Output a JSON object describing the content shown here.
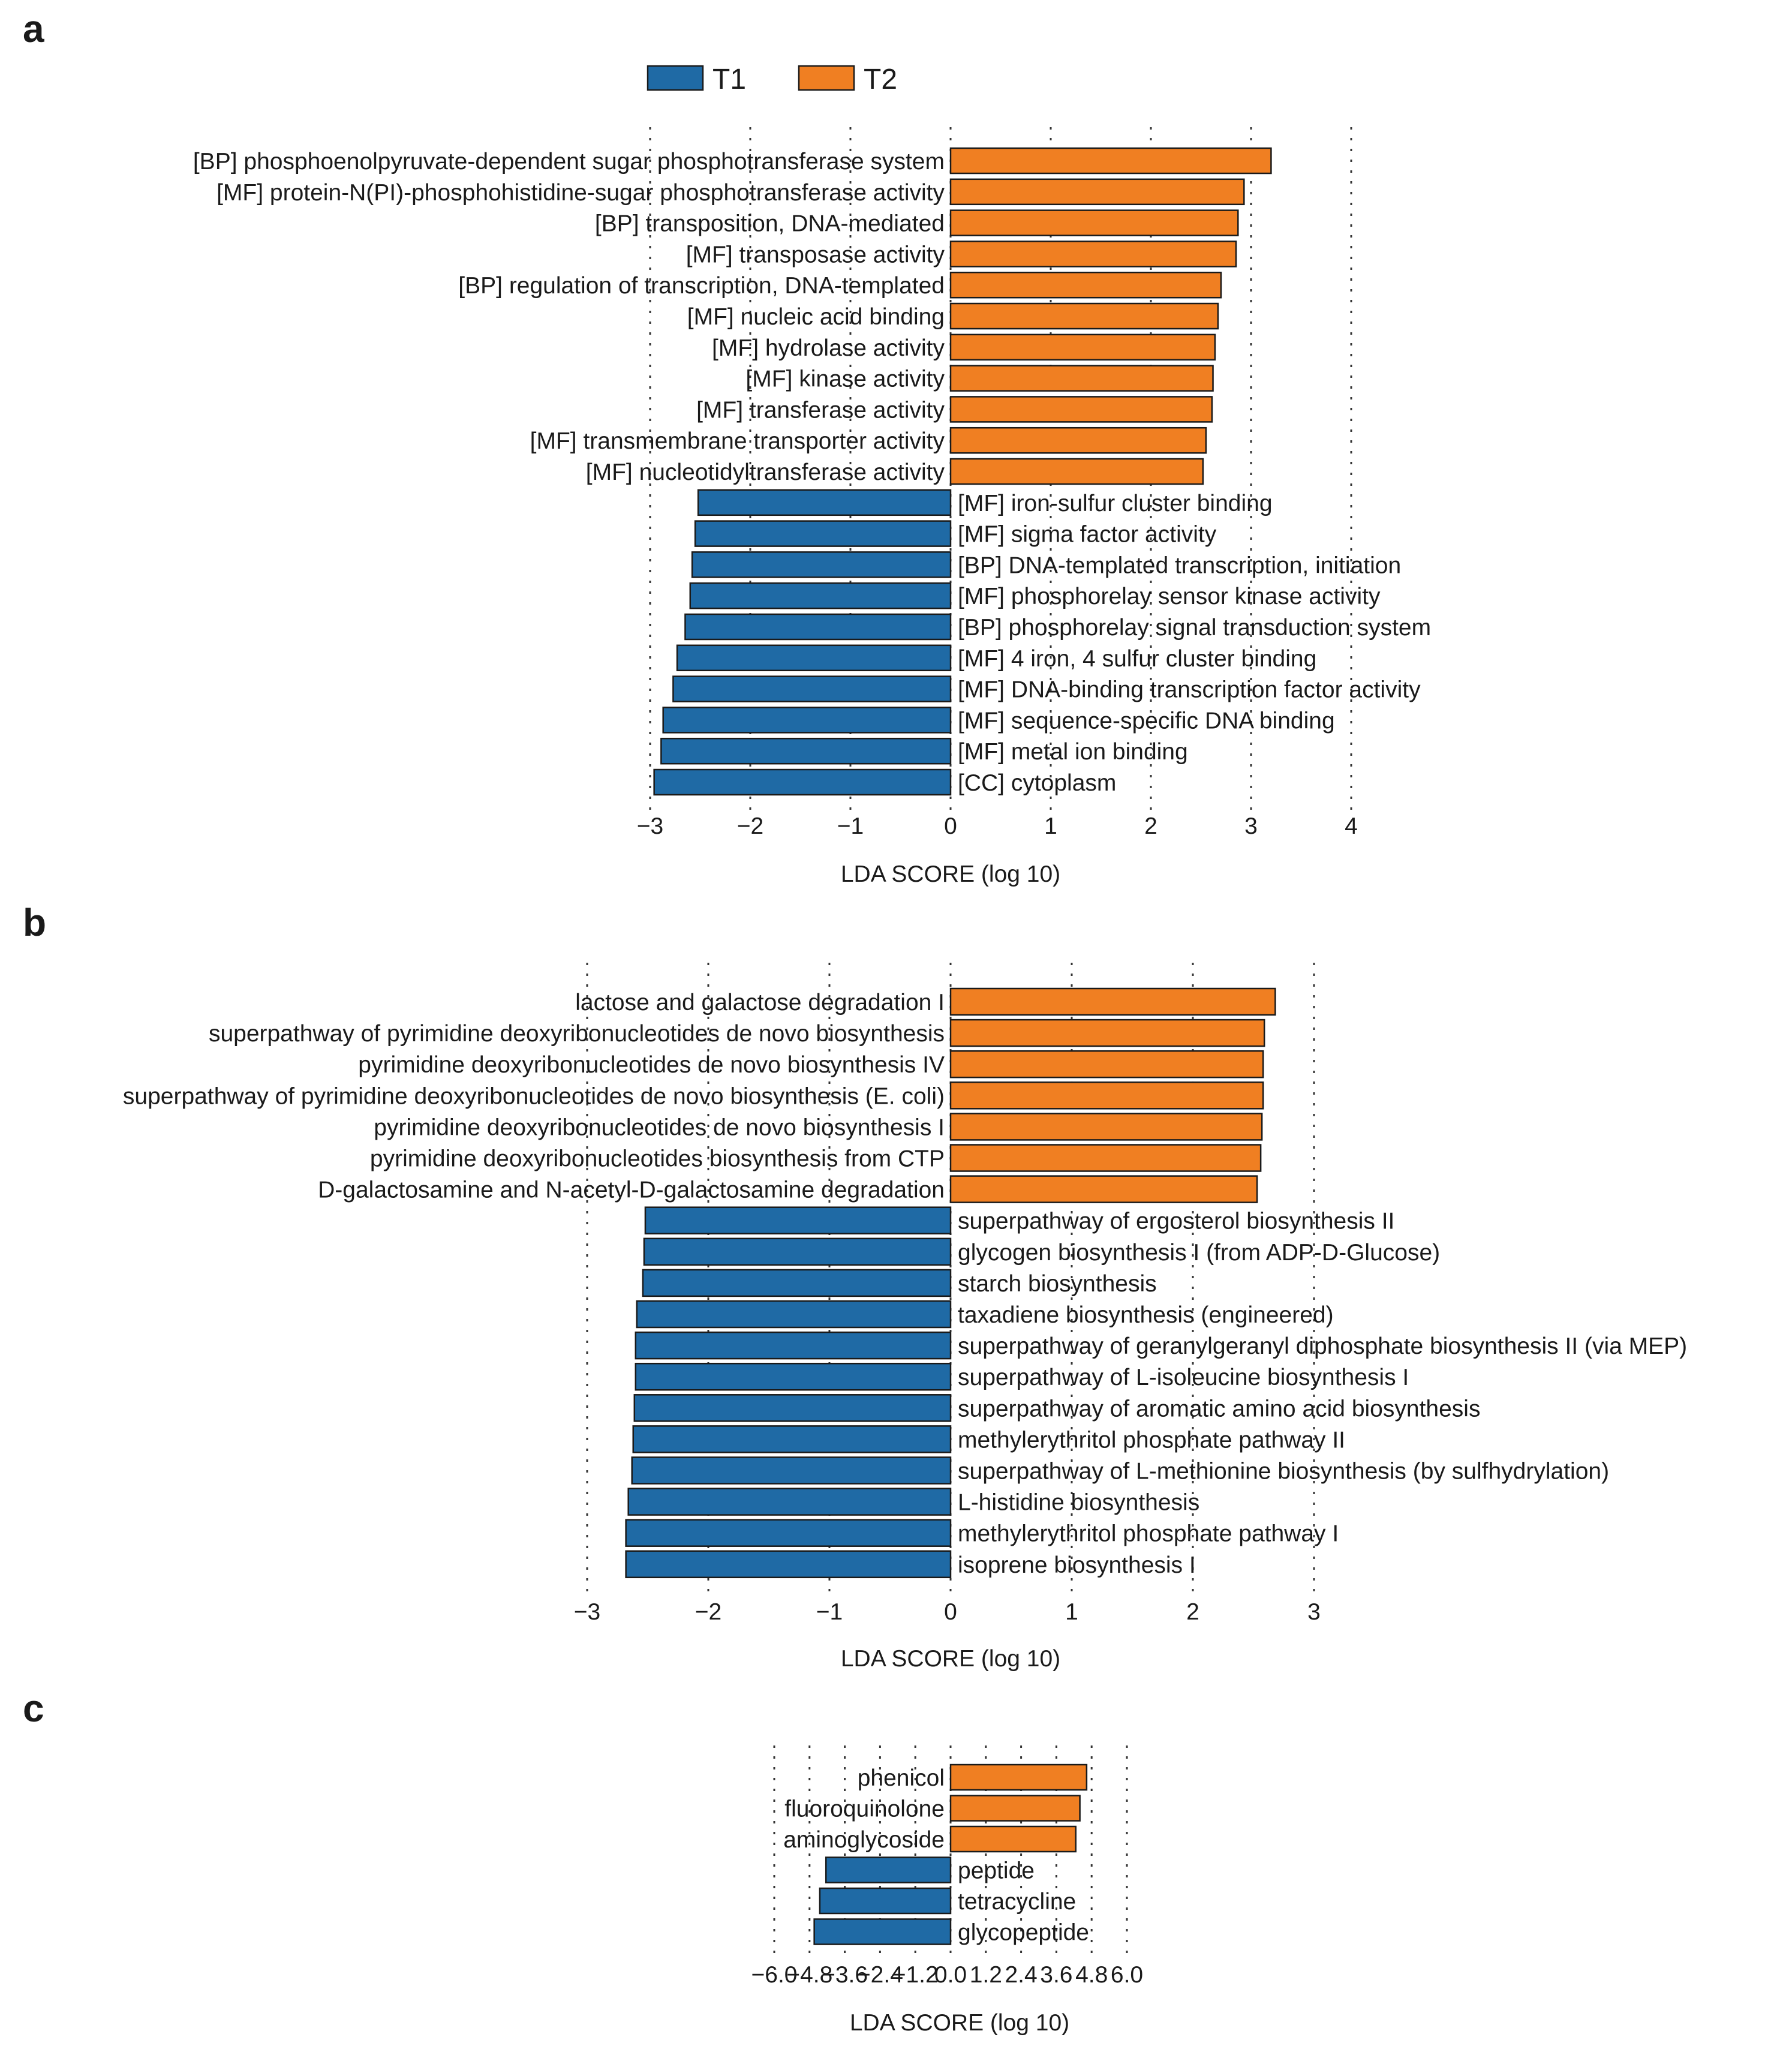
{
  "legend": {
    "items": [
      {
        "label": "T1",
        "color": "#1f6aa5"
      },
      {
        "label": "T2",
        "color": "#f07f22"
      }
    ]
  },
  "colors": {
    "T1": "#1f6aa5",
    "T2": "#f07f22"
  },
  "chart_data": [
    {
      "panel": "a",
      "type": "bar",
      "orientation": "horizontal",
      "xlabel": "LDA SCORE (log 10)",
      "xlim": [
        -3,
        4
      ],
      "ticks": [
        -3,
        -2,
        -1,
        0,
        1,
        2,
        3,
        4
      ],
      "tick_labels": [
        "−3",
        "−2",
        "−1",
        "0",
        "1",
        "2",
        "3",
        "4"
      ],
      "bars": [
        {
          "label": "[BP] phosphoenolpyruvate-dependent sugar phosphotransferase system",
          "value": 3.2,
          "group": "T2"
        },
        {
          "label": "[MF] protein-N(PI)-phosphohistidine-sugar phosphotransferase activity",
          "value": 2.93,
          "group": "T2"
        },
        {
          "label": "[BP] transposition, DNA-mediated",
          "value": 2.87,
          "group": "T2"
        },
        {
          "label": "[MF] transposase activity",
          "value": 2.85,
          "group": "T2"
        },
        {
          "label": "[BP] regulation of transcription, DNA-templated",
          "value": 2.7,
          "group": "T2"
        },
        {
          "label": "[MF] nucleic acid binding",
          "value": 2.67,
          "group": "T2"
        },
        {
          "label": "[MF] hydrolase activity",
          "value": 2.64,
          "group": "T2"
        },
        {
          "label": "[MF] kinase activity",
          "value": 2.62,
          "group": "T2"
        },
        {
          "label": "[MF] transferase activity",
          "value": 2.61,
          "group": "T2"
        },
        {
          "label": "[MF] transmembrane transporter activity",
          "value": 2.55,
          "group": "T2"
        },
        {
          "label": "[MF] nucleotidyltransferase activity",
          "value": 2.52,
          "group": "T2"
        },
        {
          "label": "[MF] iron-sulfur cluster binding",
          "value": -2.52,
          "group": "T1"
        },
        {
          "label": "[MF] sigma factor activity",
          "value": -2.55,
          "group": "T1"
        },
        {
          "label": "[BP] DNA-templated transcription, initiation",
          "value": -2.58,
          "group": "T1"
        },
        {
          "label": "[MF] phosphorelay sensor kinase activity",
          "value": -2.6,
          "group": "T1"
        },
        {
          "label": "[BP] phosphorelay signal transduction system",
          "value": -2.65,
          "group": "T1"
        },
        {
          "label": "[MF] 4 iron, 4 sulfur cluster binding",
          "value": -2.73,
          "group": "T1"
        },
        {
          "label": "[MF] DNA-binding transcription factor activity",
          "value": -2.77,
          "group": "T1"
        },
        {
          "label": "[MF] sequence-specific DNA binding",
          "value": -2.87,
          "group": "T1"
        },
        {
          "label": "[MF] metal ion binding",
          "value": -2.89,
          "group": "T1"
        },
        {
          "label": "[CC] cytoplasm",
          "value": -2.96,
          "group": "T1"
        }
      ]
    },
    {
      "panel": "b",
      "type": "bar",
      "orientation": "horizontal",
      "xlabel": "LDA SCORE (log 10)",
      "xlim": [
        -3,
        3
      ],
      "ticks": [
        -3,
        -2,
        -1,
        0,
        1,
        2,
        3
      ],
      "tick_labels": [
        "−3",
        "−2",
        "−1",
        "0",
        "1",
        "2",
        "3"
      ],
      "bars": [
        {
          "label": "lactose and galactose degradation I",
          "value": 2.68,
          "group": "T2"
        },
        {
          "label": "superpathway of pyrimidine deoxyribonucleotides de novo biosynthesis",
          "value": 2.59,
          "group": "T2"
        },
        {
          "label": "pyrimidine deoxyribonucleotides de novo biosynthesis IV",
          "value": 2.58,
          "group": "T2"
        },
        {
          "label": "superpathway of pyrimidine deoxyribonucleotides de novo biosynthesis (E. coli)",
          "value": 2.58,
          "group": "T2"
        },
        {
          "label": "pyrimidine deoxyribonucleotides de novo biosynthesis I",
          "value": 2.57,
          "group": "T2"
        },
        {
          "label": "pyrimidine deoxyribonucleotides biosynthesis from CTP",
          "value": 2.56,
          "group": "T2"
        },
        {
          "label": "D-galactosamine and N-acetyl-D-galactosamine degradation",
          "value": 2.53,
          "group": "T2"
        },
        {
          "label": "superpathway of ergosterol biosynthesis II",
          "value": -2.52,
          "group": "T1"
        },
        {
          "label": "glycogen biosynthesis I (from ADP-D-Glucose)",
          "value": -2.53,
          "group": "T1"
        },
        {
          "label": "starch biosynthesis",
          "value": -2.54,
          "group": "T1"
        },
        {
          "label": "taxadiene biosynthesis (engineered)",
          "value": -2.59,
          "group": "T1"
        },
        {
          "label": "superpathway of geranylgeranyl diphosphate biosynthesis II (via MEP)",
          "value": -2.6,
          "group": "T1"
        },
        {
          "label": "superpathway of L-isoleucine biosynthesis I",
          "value": -2.6,
          "group": "T1"
        },
        {
          "label": "superpathway of aromatic amino acid biosynthesis",
          "value": -2.61,
          "group": "T1"
        },
        {
          "label": "methylerythritol phosphate pathway II",
          "value": -2.62,
          "group": "T1"
        },
        {
          "label": "superpathway of L-methionine biosynthesis (by sulfhydrylation)",
          "value": -2.63,
          "group": "T1"
        },
        {
          "label": "L-histidine biosynthesis",
          "value": -2.66,
          "group": "T1"
        },
        {
          "label": "methylerythritol phosphate pathway I",
          "value": -2.68,
          "group": "T1"
        },
        {
          "label": "isoprene biosynthesis I",
          "value": -2.68,
          "group": "T1"
        }
      ]
    },
    {
      "panel": "c",
      "type": "bar",
      "orientation": "horizontal",
      "xlabel": "LDA SCORE (log 10)",
      "xlim": [
        -6,
        6
      ],
      "ticks": [
        -6,
        -4.8,
        -3.6,
        -2.4,
        -1.2,
        0,
        1.2,
        2.4,
        3.6,
        4.8,
        6
      ],
      "tick_labels": [
        "−6.0",
        "−4.8",
        "−3.6",
        "−2.4",
        "−1.2",
        "0.0",
        "1.2",
        "2.4",
        "3.6",
        "4.8",
        "6.0"
      ],
      "bars": [
        {
          "label": "phenicol",
          "value": 4.63,
          "group": "T2"
        },
        {
          "label": "fluoroquinolone",
          "value": 4.4,
          "group": "T2"
        },
        {
          "label": "aminoglycoside",
          "value": 4.26,
          "group": "T2"
        },
        {
          "label": "peptide",
          "value": -4.24,
          "group": "T1"
        },
        {
          "label": "tetracycline",
          "value": -4.45,
          "group": "T1"
        },
        {
          "label": "glycopeptide",
          "value": -4.64,
          "group": "T1"
        }
      ]
    }
  ]
}
